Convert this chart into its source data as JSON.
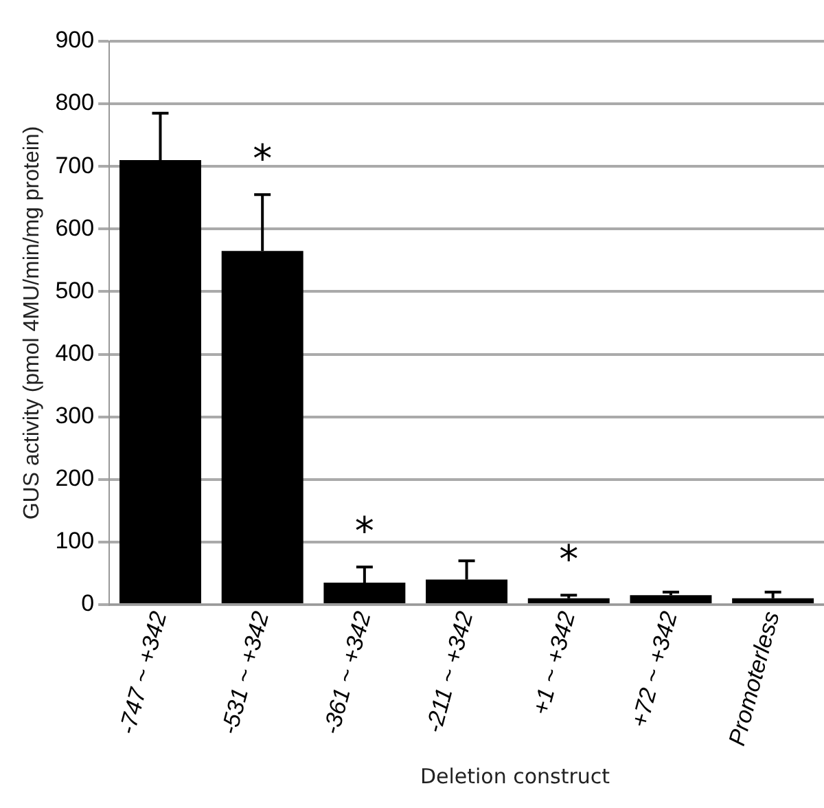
{
  "chart_data": {
    "type": "bar",
    "categories": [
      "-747 ~ +342",
      "-531 ~ +342",
      "-361 ~ +342",
      "-211 ~ +342",
      "+1 ~ +342",
      "+72 ~ +342",
      "Promoterless"
    ],
    "values": [
      710,
      565,
      35,
      40,
      10,
      15,
      10
    ],
    "errors": [
      75,
      90,
      25,
      30,
      5,
      5,
      10
    ],
    "color": "#000000",
    "xlabel": "Deletion construct",
    "ylabel": "GUS activity (pmol 4MU/min/mg protein)",
    "ylim": [
      0,
      900
    ],
    "yticks": [
      0,
      100,
      200,
      300,
      400,
      500,
      600,
      700,
      800,
      900
    ],
    "grid": "y",
    "legend": false,
    "annotations": [
      {
        "text": "*",
        "x": "-531 ~ +342",
        "y": 565
      },
      {
        "text": "*",
        "x": "-361 ~ +342",
        "y": 35
      },
      {
        "text": "*",
        "x": "+1 ~ +342",
        "y": 10
      }
    ]
  }
}
